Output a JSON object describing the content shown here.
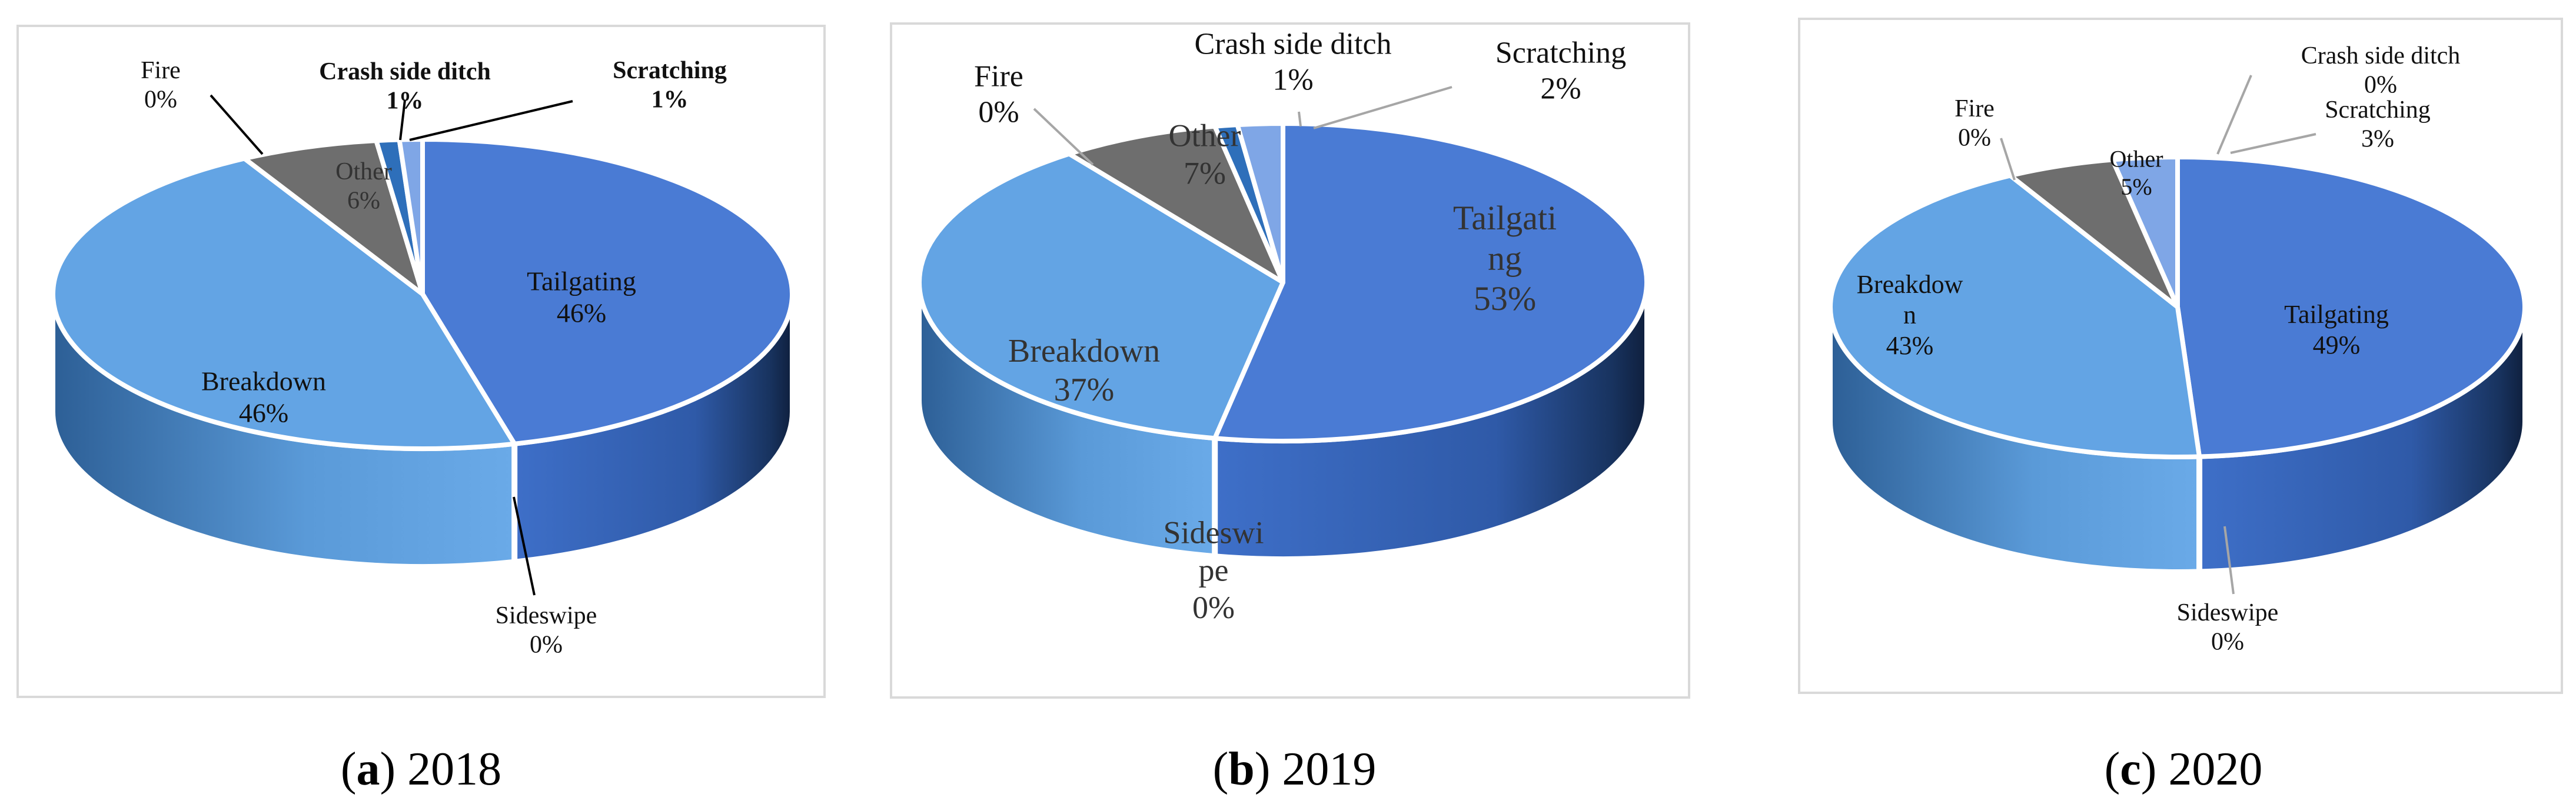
{
  "chart_data": [
    {
      "type": "pie",
      "style": "3d",
      "title": "",
      "caption_letter": "a",
      "caption_year": "2018",
      "slices": [
        {
          "label": "Tailgating",
          "value": 46,
          "pct": "46%",
          "color": "#4a7bd4"
        },
        {
          "label": "Sideswipe",
          "value": 0,
          "pct": "0%",
          "color": "#4a7bd4"
        },
        {
          "label": "Breakdown",
          "value": 46,
          "pct": "46%",
          "color": "#63a4e4"
        },
        {
          "label": "Fire",
          "value": 0,
          "pct": "0%",
          "color": "#63a4e4"
        },
        {
          "label": "Other",
          "value": 6,
          "pct": "6%",
          "color": "#6e6e6e"
        },
        {
          "label": "Crash side ditch",
          "value": 1,
          "pct": "1%",
          "color": "#2e6fba"
        },
        {
          "label": "Scratching",
          "value": 1,
          "pct": "1%",
          "color": "#7fa6e6"
        }
      ]
    },
    {
      "type": "pie",
      "style": "3d",
      "title": "",
      "caption_letter": "b",
      "caption_year": "2019",
      "slices": [
        {
          "label": "Tailgating",
          "value": 53,
          "pct": "53%",
          "color": "#4a7bd4"
        },
        {
          "label": "Sideswipe",
          "value": 0,
          "pct": "0%",
          "color": "#4a7bd4"
        },
        {
          "label": "Breakdown",
          "value": 37,
          "pct": "37%",
          "color": "#63a4e4"
        },
        {
          "label": "Fire",
          "value": 0,
          "pct": "0%",
          "color": "#63a4e4"
        },
        {
          "label": "Other",
          "value": 7,
          "pct": "7%",
          "color": "#6e6e6e"
        },
        {
          "label": "Crash side ditch",
          "value": 1,
          "pct": "1%",
          "color": "#2e6fba"
        },
        {
          "label": "Scratching",
          "value": 2,
          "pct": "2%",
          "color": "#7fa6e6"
        }
      ]
    },
    {
      "type": "pie",
      "style": "3d",
      "title": "",
      "caption_letter": "c",
      "caption_year": "2020",
      "slices": [
        {
          "label": "Tailgating",
          "value": 49,
          "pct": "49%",
          "color": "#4a7bd4"
        },
        {
          "label": "Sideswipe",
          "value": 0,
          "pct": "0%",
          "color": "#4a7bd4"
        },
        {
          "label": "Breakdown",
          "value": 43,
          "pct": "43%",
          "color": "#63a4e4"
        },
        {
          "label": "Fire",
          "value": 0,
          "pct": "0%",
          "color": "#63a4e4"
        },
        {
          "label": "Other",
          "value": 5,
          "pct": "5%",
          "color": "#6e6e6e"
        },
        {
          "label": "Crash side ditch",
          "value": 0,
          "pct": "0%",
          "color": "#2e6fba"
        },
        {
          "label": "Scratching",
          "value": 3,
          "pct": "3%",
          "color": "#7fa6e6"
        }
      ]
    }
  ]
}
